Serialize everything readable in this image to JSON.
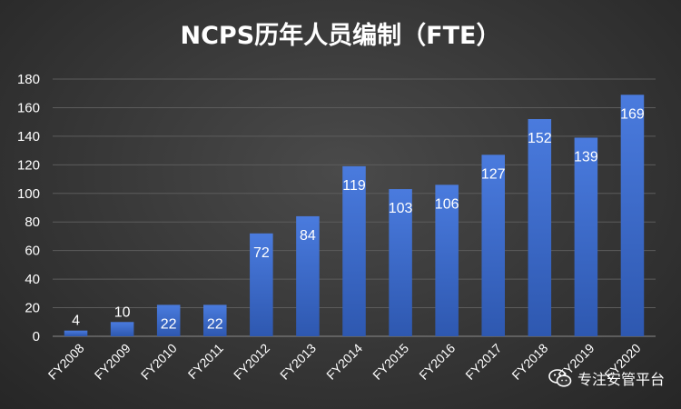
{
  "chart_data": {
    "type": "bar",
    "title": "NCPS历年人员编制（FTE）",
    "categories": [
      "FY2008",
      "FY2009",
      "FY2010",
      "FY2011",
      "FY2012",
      "FY2013",
      "FY2014",
      "FY2015",
      "FY2016",
      "FY2017",
      "FY2018",
      "FY2019",
      "FY2020"
    ],
    "values": [
      4,
      10,
      22,
      22,
      72,
      84,
      119,
      103,
      106,
      127,
      152,
      139,
      169
    ],
    "ylim": [
      0,
      180
    ],
    "yticks": [
      "0",
      "20",
      "40",
      "60",
      "80",
      "100",
      "120",
      "140",
      "160",
      "180"
    ],
    "xlabel": "",
    "ylabel": "",
    "grid": true,
    "legend": "none",
    "bar_color": "#3f6fd0",
    "label_color": "#ffffff"
  },
  "watermark": {
    "icon": "wechat-icon",
    "text": "专注安管平台"
  }
}
